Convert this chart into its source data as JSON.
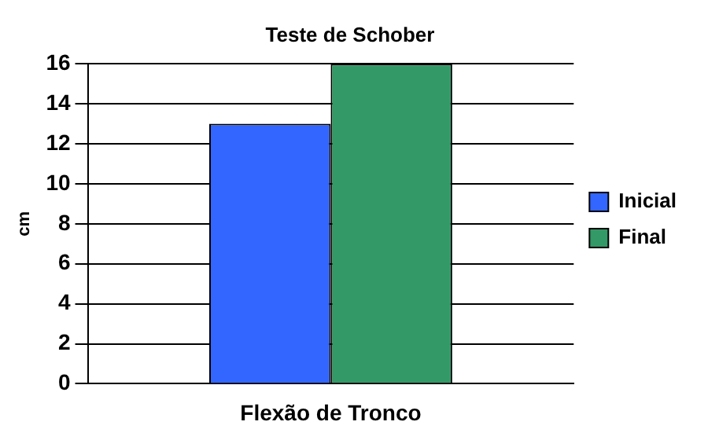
{
  "chart_data": {
    "type": "bar",
    "title": "Teste de Schober",
    "ylabel": "cm",
    "categories": [
      "Flexão de Tronco"
    ],
    "series": [
      {
        "name": "Inicial",
        "color": "#3366ff",
        "values": [
          13
        ]
      },
      {
        "name": "Final",
        "color": "#339966",
        "values": [
          16
        ]
      }
    ],
    "ylim": [
      0,
      16
    ],
    "yticks": [
      0,
      2,
      4,
      6,
      8,
      10,
      12,
      14,
      16
    ],
    "grid": "y",
    "legend": "right"
  }
}
